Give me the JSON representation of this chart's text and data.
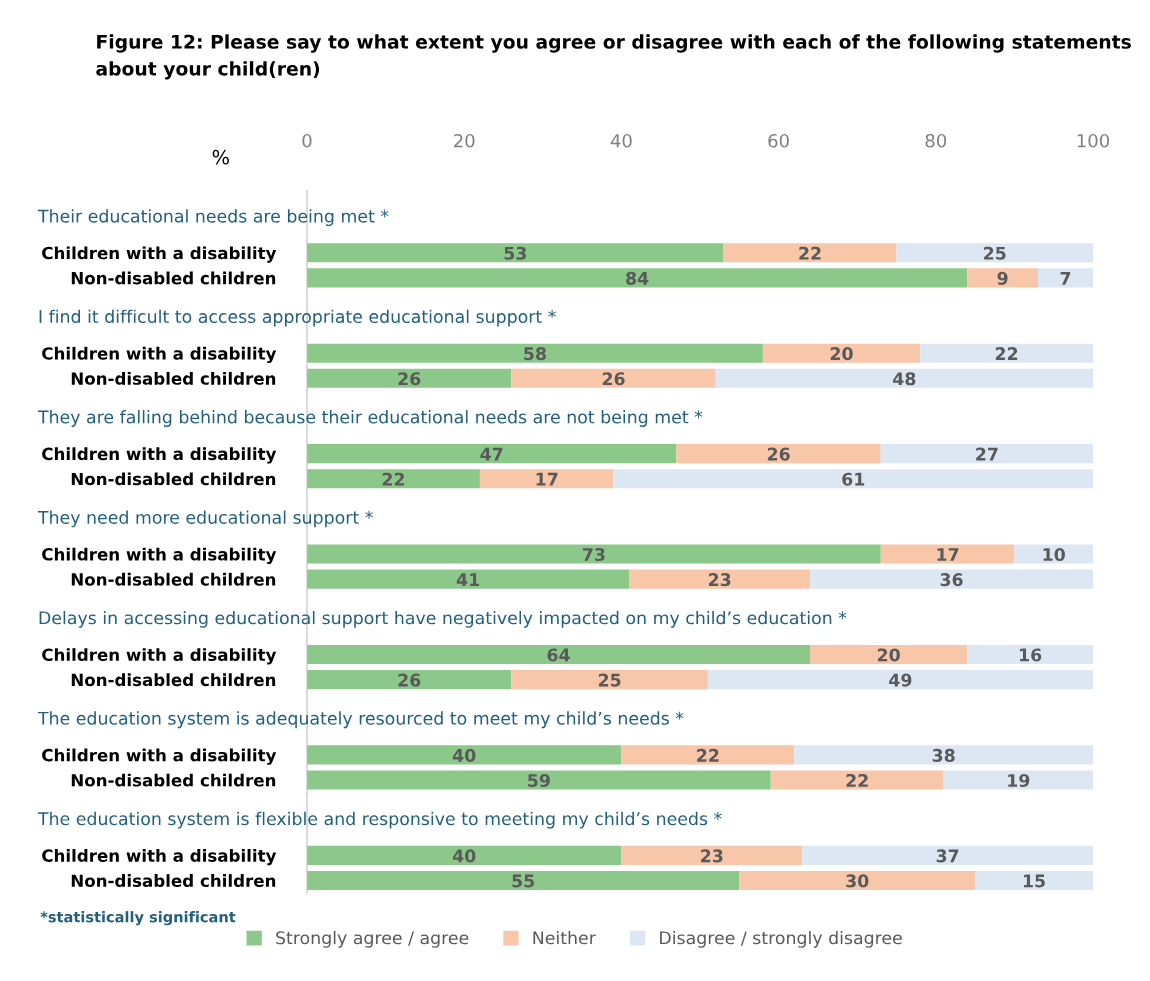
{
  "chart_data": [
    {
      "type": "bar",
      "orientation": "horizontal",
      "stacked": true,
      "title": "Figure 12: Please say to what extent you agree or disagree with each of the following statements about your child(ren)",
      "subtitle": "Their educational needs are being met *",
      "xlabel": "%",
      "categories": [
        "Children with a disability",
        "Non-disabled children"
      ],
      "series": [
        {
          "color": "#8dc88b",
          "values": [
            53,
            84
          ]
        },
        {
          "color": "#f8c6a9",
          "values": [
            22,
            9
          ]
        },
        {
          "color": "#dde7f3",
          "values": [
            25,
            7
          ]
        }
      ],
      "xlim": [
        0,
        100
      ],
      "xticks": [
        0,
        20,
        40,
        60,
        80,
        100
      ],
      "data_labels": true
    },
    {
      "type": "bar",
      "orientation": "horizontal",
      "stacked": true,
      "title": "I find it difficult to access appropriate educational support *",
      "categories": [
        "Children with a disability",
        "Non-disabled children"
      ],
      "series": [
        {
          "color": "#8dc88b",
          "values": [
            58,
            26
          ]
        },
        {
          "color": "#f8c6a9",
          "values": [
            20,
            26
          ]
        },
        {
          "color": "#dde7f3",
          "values": [
            22,
            48
          ]
        }
      ],
      "xlim": [
        0,
        100
      ],
      "xticks": [
        0,
        20,
        40,
        60,
        80,
        100
      ],
      "tick_labels": "y",
      "data_labels": true
    },
    {
      "type": "bar",
      "orientation": "horizontal",
      "stacked": true,
      "title": "They are falling behind because their educational needs are not being met *",
      "categories": [
        "Children with a disability",
        "Non-disabled children"
      ],
      "series": [
        {
          "color": "#8dc88b",
          "values": [
            47,
            22
          ]
        },
        {
          "color": "#f8c6a9",
          "values": [
            26,
            17
          ]
        },
        {
          "color": "#dde7f3",
          "values": [
            27,
            61
          ]
        }
      ],
      "xlim": [
        0,
        100
      ],
      "xticks": [
        0,
        20,
        40,
        60,
        80,
        100
      ],
      "tick_labels": "y",
      "data_labels": true
    },
    {
      "type": "bar",
      "orientation": "horizontal",
      "stacked": true,
      "title": "They need more educational support *",
      "categories": [
        "Children with a disability",
        "Non-disabled children"
      ],
      "series": [
        {
          "color": "#8dc88b",
          "values": [
            73,
            41
          ]
        },
        {
          "color": "#f8c6a9",
          "values": [
            17,
            23
          ]
        },
        {
          "color": "#dde7f3",
          "values": [
            10,
            36
          ]
        }
      ],
      "xlim": [
        0,
        100
      ],
      "xticks": [
        0,
        20,
        40,
        60,
        80,
        100
      ],
      "tick_labels": "y",
      "data_labels": true
    },
    {
      "type": "bar",
      "orientation": "horizontal",
      "stacked": true,
      "title": "Delays in accessing educational support have negatively impacted on my child’s education *",
      "categories": [
        "Children with a disability",
        "Non-disabled children"
      ],
      "series": [
        {
          "color": "#8dc88b",
          "values": [
            64,
            26
          ]
        },
        {
          "color": "#f8c6a9",
          "values": [
            20,
            25
          ]
        },
        {
          "color": "#dde7f3",
          "values": [
            16,
            49
          ]
        }
      ],
      "xlim": [
        0,
        100
      ],
      "xticks": [
        0,
        20,
        40,
        60,
        80,
        100
      ],
      "tick_labels": "y",
      "data_labels": true
    },
    {
      "type": "bar",
      "orientation": "horizontal",
      "stacked": true,
      "title": "The education system is adequately resourced to meet my child’s needs *",
      "categories": [
        "Children with a disability",
        "Non-disabled children"
      ],
      "series": [
        {
          "color": "#8dc88b",
          "values": [
            40,
            59
          ]
        },
        {
          "color": "#f8c6a9",
          "values": [
            22,
            22
          ]
        },
        {
          "color": "#dde7f3",
          "values": [
            38,
            19
          ]
        }
      ],
      "xlim": [
        0,
        100
      ],
      "xticks": [
        0,
        20,
        40,
        60,
        80,
        100
      ],
      "tick_labels": "y",
      "data_labels": true
    },
    {
      "type": "bar",
      "orientation": "horizontal",
      "stacked": true,
      "title": "The education system is flexible and responsive to meeting my child’s needs *",
      "categories": [
        "Children with a disability",
        "Non-disabled children"
      ],
      "series": [
        {
          "name": "Strongly agree / agree",
          "color": "#8dc88b",
          "values": [
            40,
            55
          ]
        },
        {
          "name": "Neither",
          "color": "#f8c6a9",
          "values": [
            23,
            30
          ]
        },
        {
          "name": "Disagree / strongly disagree",
          "color": "#dde7f3",
          "values": [
            37,
            15
          ]
        }
      ],
      "xlim": [
        0,
        100
      ],
      "xticks": [
        0,
        20,
        40,
        60,
        80,
        100
      ],
      "tick_labels": "y",
      "data_labels": true,
      "legend": "bottom",
      "annotations": [
        "*statistically significant"
      ]
    }
  ]
}
